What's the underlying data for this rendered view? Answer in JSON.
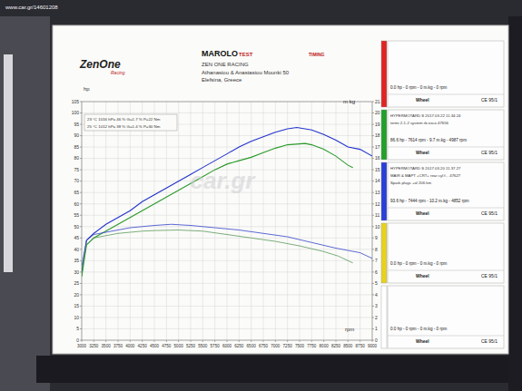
{
  "site": "www.car.gr/14601208",
  "watermark": "car.gr",
  "header": {
    "logo": "ZenOne",
    "logo_sub": "Racing",
    "brand": "MAROLO",
    "brand_sub": "TEST",
    "brand2": "TIMING",
    "lines": [
      "ZEN ONE RACING",
      "Athanasiou & Anastasiou Mounki 50",
      "Elefsina, Greece"
    ]
  },
  "conditions": [
    "23 °C   1016 hPa   46 %   G=1.7 %   P=22 Nm",
    "25 °C   1012 hPa   38 %   G=1.4 %   P=30 Nm"
  ],
  "panels": [
    {
      "color": "#e02424",
      "lines": [],
      "stats": "0.0 hp - 0 rpm - 0 m.kg - 0 rpm",
      "wheel": "Wheel",
      "norm": "CE 95/1"
    },
    {
      "color": "#22a02a",
      "lines": [
        "HYPERMOTARD S     2017.03.22 11.34.24",
        "termi 2-1-2 system rb exco        47656"
      ],
      "stats": "86.6 hp - 7614 rpm - 9.7 m.kg - 4987 rpm",
      "wheel": "Wheel",
      "norm": "CE 95/1"
    },
    {
      "color": "#2a3ed8",
      "lines": [
        "HYPERMOTARD S     2017.03.20 11.37.27",
        "MAIR & MAPT +CRT+ rear cyl f...      47627",
        "Spark plugs +ol 206 km"
      ],
      "stats": "93.6 hp - 7444 rpm - 10.2 m.kg - 4852 rpm",
      "wheel": "Wheel",
      "norm": "CE 95/1"
    },
    {
      "color": "#e8d21e",
      "lines": [],
      "stats": "0.0 hp - 0 rpm - 0 m.kg - 0 rpm",
      "wheel": "Wheel",
      "norm": "CE 95/1"
    },
    {
      "color": "#ffffff",
      "lines": [],
      "stats": "0.0 hp - 0 rpm - 0 m.kg - 0 rpm",
      "wheel": "Wheel",
      "norm": "CE 95/1"
    }
  ],
  "chart_data": {
    "type": "line",
    "x_label": "rpm",
    "y_label": "hp",
    "y2_label": "m kg",
    "grid": true,
    "xlim": [
      3000,
      9000
    ],
    "xticks": [
      3000,
      3250,
      3500,
      3750,
      4000,
      4250,
      4500,
      4750,
      5000,
      5250,
      5500,
      5750,
      6000,
      6250,
      6500,
      6750,
      7000,
      7250,
      7500,
      7750,
      8000,
      8250,
      8500,
      8750,
      9000
    ],
    "ylim": [
      0,
      105
    ],
    "yticks": [
      0,
      5,
      10,
      15,
      20,
      25,
      30,
      35,
      40,
      45,
      50,
      55,
      60,
      65,
      70,
      75,
      80,
      85,
      90,
      95,
      100,
      105
    ],
    "y2lim": [
      0,
      21
    ],
    "y2ticks": [
      0,
      1,
      2,
      3,
      4,
      5,
      6,
      7,
      8,
      9,
      10,
      11,
      12,
      13,
      14,
      15,
      16,
      17,
      18,
      19,
      20,
      {
        "value": 21,
        "label": "21.0"
      }
    ],
    "series": [
      {
        "color": "#2233cc",
        "x": [
          3000,
          3100,
          3250,
          3500,
          3750,
          4000,
          4250,
          4500,
          4750,
          5000,
          5250,
          5500,
          5750,
          6000,
          6250,
          6500,
          6750,
          7000,
          7250,
          7444,
          7750,
          8000,
          8250,
          8500,
          8750,
          9000
        ],
        "values": [
          30,
          44,
          47,
          51,
          54,
          57,
          61,
          64,
          67,
          70,
          73,
          76,
          79,
          82,
          85,
          87.5,
          89.5,
          91.5,
          93,
          93.6,
          92.5,
          90.5,
          88,
          85,
          84,
          81
        ]
      },
      {
        "color": "#2a9a2a",
        "x": [
          3000,
          3100,
          3250,
          3500,
          3750,
          4000,
          4250,
          4500,
          4750,
          5000,
          5250,
          5500,
          5750,
          6000,
          6250,
          6500,
          6750,
          7000,
          7250,
          7614,
          7750,
          8000,
          8250,
          8500,
          8600
        ],
        "values": [
          28,
          42,
          45,
          48,
          51,
          54,
          57,
          60,
          63,
          66,
          69,
          72,
          75,
          77.5,
          79,
          80.5,
          82.5,
          84.5,
          86,
          86.6,
          86,
          84,
          81,
          77,
          76
        ]
      },
      {
        "color": "#3344cc",
        "axis": "y2",
        "x": [
          3000,
          3100,
          3250,
          3500,
          3750,
          4000,
          4250,
          4500,
          4852,
          5250,
          5750,
          6250,
          6750,
          7250,
          7750,
          8250,
          8750,
          9000
        ],
        "values": [
          6.5,
          8.8,
          9.3,
          9.5,
          9.7,
          9.9,
          10.0,
          10.1,
          10.2,
          10.1,
          9.9,
          9.7,
          9.4,
          9.1,
          8.6,
          8.1,
          7.7,
          7.2
        ]
      },
      {
        "color": "#5a9a5a",
        "axis": "y2",
        "x": [
          3000,
          3100,
          3250,
          3500,
          3750,
          4000,
          4250,
          4500,
          4987,
          5500,
          6000,
          6500,
          7000,
          7500,
          8000,
          8300,
          8600
        ],
        "values": [
          6.2,
          8.4,
          9.0,
          9.2,
          9.4,
          9.5,
          9.6,
          9.65,
          9.7,
          9.6,
          9.3,
          9.0,
          8.7,
          8.3,
          7.8,
          7.4,
          6.8
        ]
      }
    ]
  }
}
